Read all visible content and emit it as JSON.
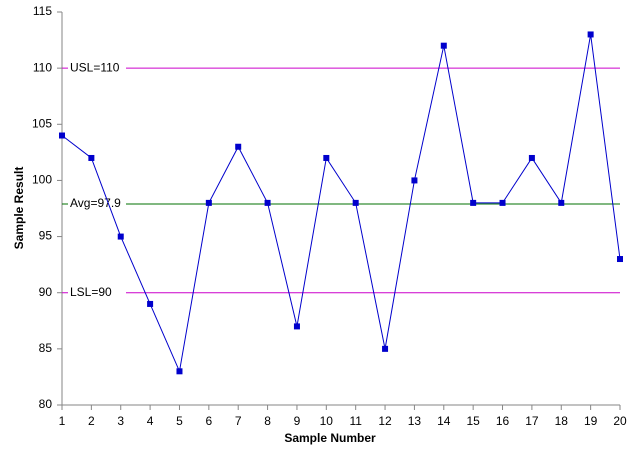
{
  "chart_data": {
    "type": "line",
    "x_label": "Sample Number",
    "y_label": "Sample Result",
    "x": [
      1,
      2,
      3,
      4,
      5,
      6,
      7,
      8,
      9,
      10,
      11,
      12,
      13,
      14,
      15,
      16,
      17,
      18,
      19,
      20
    ],
    "series": [
      {
        "name": "Sample Result",
        "color": "#0000cc",
        "values": [
          104,
          102,
          95,
          89,
          83,
          98,
          103,
          98,
          87,
          102,
          98,
          85,
          100,
          112,
          98,
          98,
          102,
          98,
          113,
          93
        ]
      }
    ],
    "ref_lines": [
      {
        "label": "USL=110",
        "value": 110,
        "color": "#cc00cc"
      },
      {
        "label": "Avg=97.9",
        "value": 97.9,
        "color": "#007000"
      },
      {
        "label": "LSL=90",
        "value": 90,
        "color": "#cc00cc"
      }
    ],
    "xlim": [
      1,
      20
    ],
    "xticks": [
      1,
      2,
      3,
      4,
      5,
      6,
      7,
      8,
      9,
      10,
      11,
      12,
      13,
      14,
      15,
      16,
      17,
      18,
      19,
      20
    ],
    "ylim": [
      80,
      115
    ],
    "yticks": [
      80,
      85,
      90,
      95,
      100,
      105,
      110,
      115
    ],
    "grid": false
  }
}
